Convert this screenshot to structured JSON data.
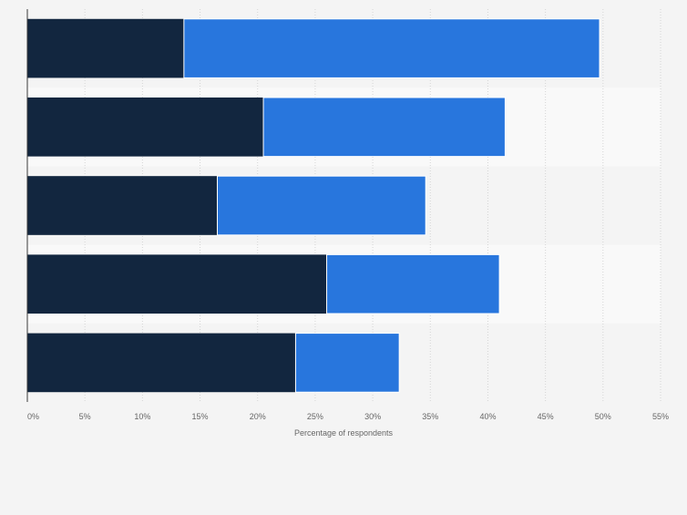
{
  "chart_data": {
    "type": "bar",
    "orientation": "horizontal",
    "stacked": true,
    "categories": [
      "",
      "",
      "",
      "",
      ""
    ],
    "series": [
      {
        "name": "",
        "color": "#12263f",
        "values": [
          13.6,
          20.5,
          16.5,
          26.0,
          23.3
        ]
      },
      {
        "name": "",
        "color": "#2876dd",
        "values": [
          36.1,
          21.0,
          18.1,
          15.0,
          9.0
        ]
      }
    ],
    "xlabel": "Percentage of respondents",
    "ylabel": "",
    "xlim": [
      0,
      55
    ],
    "xticks": [
      0,
      5,
      10,
      15,
      20,
      25,
      30,
      35,
      40,
      45,
      50,
      55
    ],
    "tick_suffix": "%",
    "grid": "vertical-dashed",
    "legend": "none",
    "band_colors": [
      "#f4f4f4",
      "#f9f9f9"
    ]
  }
}
